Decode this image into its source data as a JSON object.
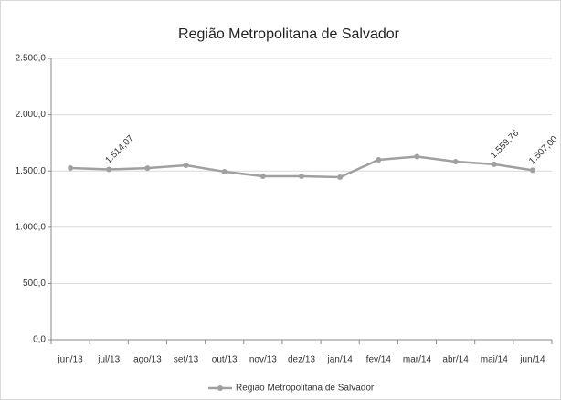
{
  "chart_data": {
    "type": "line",
    "title": "Região Metropolitana de Salvador",
    "categories": [
      "jun/13",
      "jul/13",
      "ago/13",
      "set/13",
      "out/13",
      "nov/13",
      "dez/13",
      "jan/14",
      "fev/14",
      "mar/14",
      "abr/14",
      "mai/14",
      "jun/14"
    ],
    "series": [
      {
        "name": "Região Metropolitana de Salvador",
        "color": "#a0a0a0",
        "values": [
          1526,
          1514.07,
          1525,
          1550,
          1494,
          1453,
          1453,
          1445,
          1599,
          1627,
          1583,
          1559.76,
          1507.0
        ],
        "value_labels": [
          null,
          "1.514,07",
          null,
          null,
          null,
          null,
          null,
          null,
          null,
          null,
          null,
          "1.559,76",
          "1.507,00"
        ]
      }
    ],
    "ylim": [
      0,
      2500
    ],
    "yticks": [
      {
        "value": 0,
        "label": "0,0"
      },
      {
        "value": 500,
        "label": "500,0"
      },
      {
        "value": 1000,
        "label": "1.000,0"
      },
      {
        "value": 1500,
        "label": "1.500,0"
      },
      {
        "value": 2000,
        "label": "2.000,0"
      },
      {
        "value": 2500,
        "label": "2.500,0"
      }
    ],
    "grid": true,
    "legend": "bottom"
  }
}
